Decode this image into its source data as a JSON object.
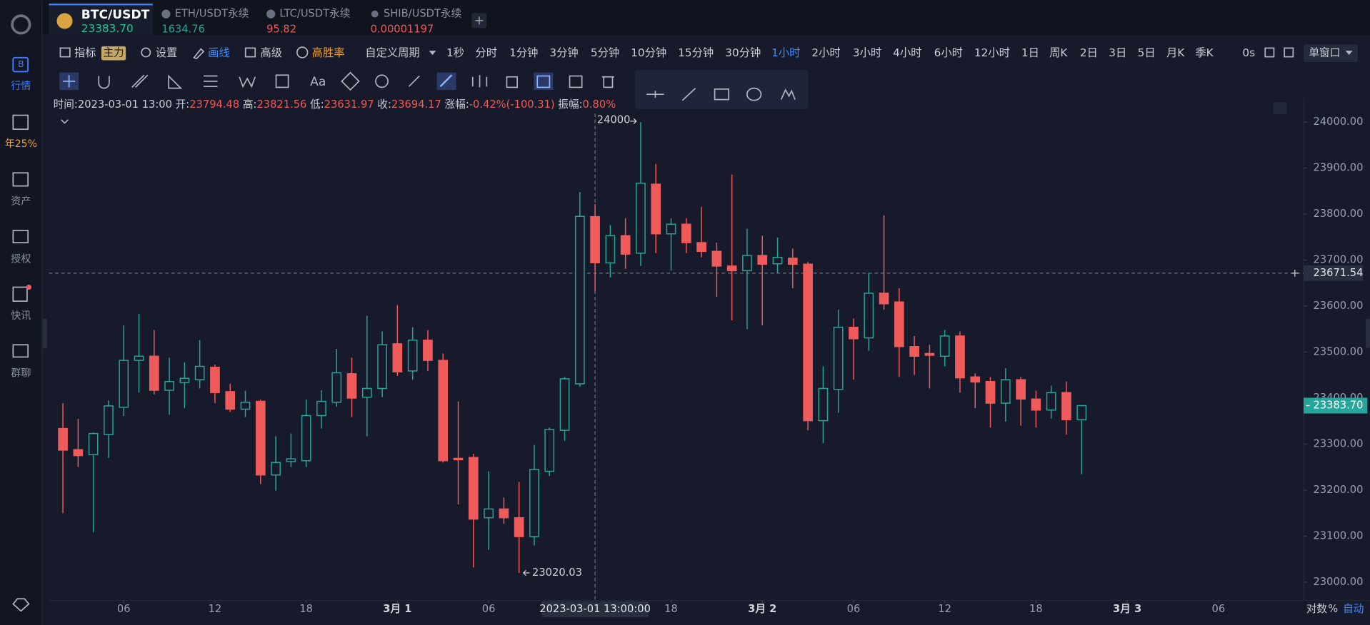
{
  "tabs": [
    {
      "symbol": "BTC/USDT",
      "price": "23383.70"
    },
    {
      "symbol": "ETH/USDT永续",
      "price": "1634.76"
    },
    {
      "symbol": "LTC/USDT永续",
      "price": "95.82"
    },
    {
      "symbol": "SHIB/USDT永续",
      "price": "0.00001197"
    }
  ],
  "sidebar": [
    "行情",
    "年25%",
    "资产",
    "授权",
    "快讯",
    "群聊"
  ],
  "toolbar": {
    "indicator": "指标",
    "badge": "主力",
    "settings": "设置",
    "draw": "画线",
    "advanced": "高级",
    "win_rate": "高胜率",
    "custom_period": "自定义周期",
    "periods": [
      "1秒",
      "分时",
      "1分钟",
      "3分钟",
      "5分钟",
      "10分钟",
      "15分钟",
      "30分钟",
      "1小时",
      "2小时",
      "3小时",
      "4小时",
      "6小时",
      "12小时",
      "1日",
      "周K",
      "2日",
      "3日",
      "5日",
      "月K",
      "季K"
    ],
    "active_period": "1小时",
    "countdown": "0s",
    "window": "单窗口",
    "text_tool": "Aa"
  },
  "info": {
    "time_label": "时间:",
    "time": "2023-03-01 13:00",
    "open_label": "开:",
    "high_label": "高:",
    "low_label": "低:",
    "close_label": "收:",
    "change_label": "涨幅:",
    "change": "-0.42%(-100.31)",
    "amplitude_label": "振幅:",
    "amplitude": "0.80%"
  },
  "chart_data": {
    "type": "candlestick",
    "up_color": "#26a69a",
    "down_color": "#ef5a5a",
    "grid": false,
    "open": [
      23334,
      23288,
      23277,
      23321,
      23380,
      23482,
      23491,
      23417,
      23434,
      23440,
      23467,
      23414,
      23376,
      23393,
      23233,
      23262,
      23264,
      23362,
      23391,
      23453,
      23402,
      23421,
      23518,
      23459,
      23526,
      23482,
      23269,
      23271,
      23140,
      23159,
      23140,
      23099,
      23241,
      23330,
      23431,
      23794.48,
      23694,
      23753,
      23715,
      23865,
      23757,
      23778,
      23738,
      23719,
      23687,
      23677,
      23710,
      23692,
      23704,
      23691,
      23351,
      23419,
      23554,
      23531,
      23628,
      23609,
      23512,
      23497,
      23491,
      23535,
      23446,
      23436,
      23389,
      23440,
      23398,
      23374,
      23412,
      23353
    ],
    "high": [
      23389,
      23355,
      23326,
      23395,
      23558,
      23583,
      23548,
      23488,
      23478,
      23526,
      23473,
      23431,
      23416,
      23397,
      23317,
      23323,
      23397,
      23417,
      23507,
      23488,
      23579,
      23545,
      23602,
      23554,
      23548,
      23497,
      23393,
      23279,
      23241,
      23184,
      23218,
      23298,
      23336,
      23446,
      23848,
      23821.56,
      23776,
      23791,
      24000,
      23909,
      23791,
      23791,
      23816,
      23738,
      23886,
      23768,
      23753,
      23749,
      23725,
      23696,
      23469,
      23592,
      23573,
      23672,
      23797,
      23639,
      23535,
      23516,
      23548,
      23545,
      23454,
      23446,
      23465,
      23446,
      23416,
      23427,
      23436,
      23383.7
    ],
    "low": [
      23150,
      23250,
      23108,
      23270,
      23361,
      23412,
      23408,
      23364,
      23378,
      23421,
      23389,
      23370,
      23359,
      23213,
      23199,
      23250,
      23250,
      23334,
      23381,
      23359,
      23317,
      23402,
      23448,
      23440,
      23459,
      23260,
      23169,
      23032,
      23070,
      23127,
      23020.03,
      23080,
      23231,
      23307,
      23425,
      23631.97,
      23662,
      23681,
      23687,
      23715,
      23677,
      23715,
      23706,
      23620,
      23569,
      23550,
      23558,
      23672,
      23639,
      23330,
      23302,
      23368,
      23440,
      23503,
      23592,
      23446,
      23450,
      23421,
      23469,
      23412,
      23378,
      23336,
      23349,
      23340,
      23336,
      23355,
      23321,
      23235
    ],
    "close": [
      23287,
      23275,
      23323,
      23383,
      23482,
      23491,
      23417,
      23436,
      23443,
      23469,
      23412,
      23376,
      23391,
      23233,
      23260,
      23268,
      23362,
      23393,
      23455,
      23400,
      23421,
      23516,
      23457,
      23526,
      23482,
      23264,
      23266,
      23137,
      23159,
      23140,
      23099,
      23245,
      23332,
      23442,
      23795,
      23694.17,
      23753,
      23713,
      23867,
      23757,
      23778,
      23738,
      23719,
      23687,
      23677,
      23710,
      23691,
      23706,
      23691,
      23351,
      23421,
      23554,
      23529,
      23628,
      23605,
      23512,
      23491,
      23493,
      23535,
      23444,
      23435,
      23389,
      23440,
      23398,
      23374,
      23412,
      23353,
      23383.7
    ],
    "xlim": [
      -0.92,
      81.6
    ],
    "xticks": [
      {
        "value": 4,
        "label": "06"
      },
      {
        "value": 10,
        "label": "12"
      },
      {
        "value": 16,
        "label": "18"
      },
      {
        "value": 22,
        "label": "3月 1"
      },
      {
        "value": 28,
        "label": "06"
      },
      {
        "value": 40,
        "label": "18"
      },
      {
        "value": 46,
        "label": "3月 2"
      },
      {
        "value": 52,
        "label": "06"
      },
      {
        "value": 58,
        "label": "12"
      },
      {
        "value": 64,
        "label": "18"
      },
      {
        "value": 70,
        "label": "3月 3"
      },
      {
        "value": 76,
        "label": "06"
      }
    ],
    "ylim": [
      22962,
      24047
    ],
    "yticks": [
      {
        "value": 23000,
        "label": "23000.00"
      },
      {
        "value": 23100,
        "label": "23100.00"
      },
      {
        "value": 23200,
        "label": "23200.00"
      },
      {
        "value": 23300,
        "label": "23300.00"
      },
      {
        "value": 23400,
        "label": "23400.00"
      },
      {
        "value": 23500,
        "label": "23500.00"
      },
      {
        "value": 23600,
        "label": "23600.00"
      },
      {
        "value": 23700,
        "label": "23700.00"
      },
      {
        "value": 23800,
        "label": "23800.00"
      },
      {
        "value": 23900,
        "label": "23900.00"
      },
      {
        "value": 24000,
        "label": "24000.00"
      }
    ],
    "crosshair": {
      "x": 35,
      "price": 23671.54,
      "label": "2023-03-01 13:00:00"
    },
    "price_tag": {
      "value": 23383.7,
      "label": "23383.70"
    },
    "scale_options": [
      "对数",
      "%",
      "自动"
    ]
  }
}
